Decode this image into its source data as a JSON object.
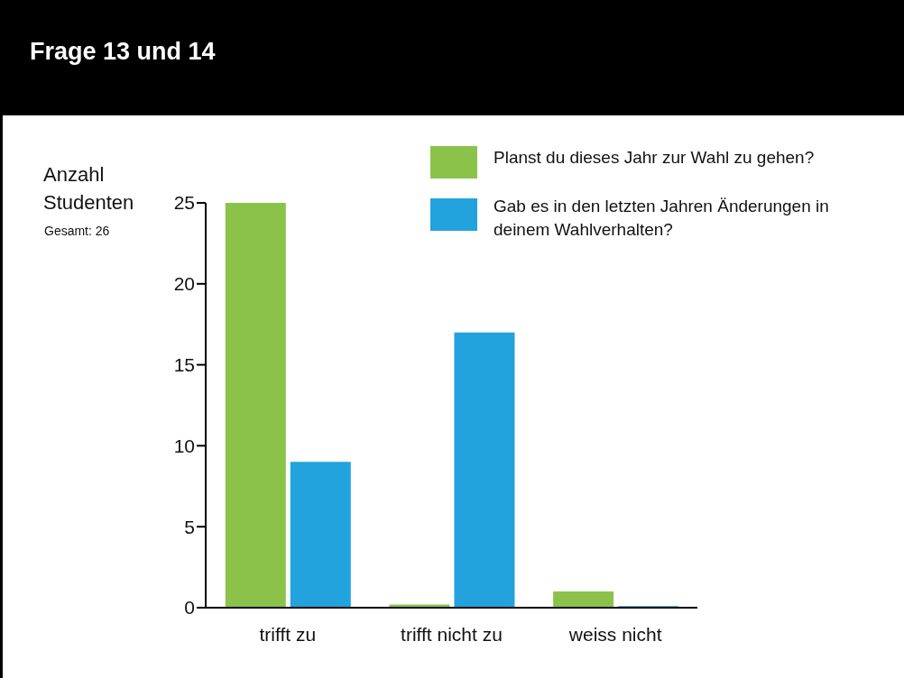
{
  "chart_data": {
    "type": "bar",
    "title": "Frage 13 und 14",
    "ylabel": "Anzahl Studenten",
    "annotations": [
      "Gesamt: 26"
    ],
    "categories": [
      "trifft zu",
      "trifft nicht zu",
      "weiss nicht"
    ],
    "series": [
      {
        "name": "Planst du dieses Jahr zur Wahl zu gehen?",
        "color": "#8bc34a",
        "values": [
          25,
          0.2,
          1
        ]
      },
      {
        "name": "Gab es in den letzten Jahren Änderungen in deinem Wahlverhalten?",
        "color": "#22a3dd",
        "values": [
          9,
          17,
          0.1
        ]
      }
    ],
    "ylim": [
      0,
      25
    ],
    "yticks": [
      0,
      5,
      10,
      15,
      20,
      25
    ],
    "grid": false,
    "legend": "top right"
  }
}
